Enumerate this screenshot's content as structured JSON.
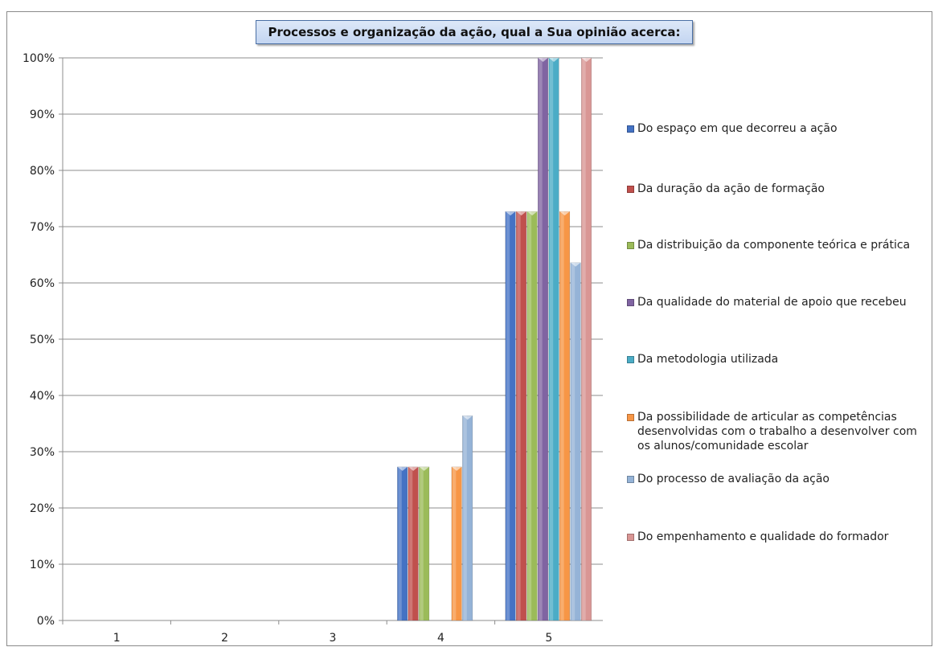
{
  "chart_data": {
    "type": "bar",
    "title": "Processos e organização da ação, qual a Sua opinião acerca:",
    "xlabel": "",
    "ylabel": "",
    "categories": [
      "1",
      "2",
      "3",
      "4",
      "5"
    ],
    "ylim": [
      0,
      1
    ],
    "y_ticks": [
      "0%",
      "10%",
      "20%",
      "30%",
      "40%",
      "50%",
      "60%",
      "70%",
      "80%",
      "90%",
      "100%"
    ],
    "grid": true,
    "legend_position": "right",
    "series": [
      {
        "name": "Do espaço em que decorreu a ação",
        "color": "#4472c4",
        "values": [
          0,
          0,
          0,
          0.273,
          0.727
        ]
      },
      {
        "name": "Da duração da ação de formação",
        "color": "#c0504d",
        "values": [
          0,
          0,
          0,
          0.273,
          0.727
        ]
      },
      {
        "name": "Da distribuição da componente teórica e prática",
        "color": "#9bbb59",
        "values": [
          0,
          0,
          0,
          0.273,
          0.727
        ]
      },
      {
        "name": "Da qualidade do material de apoio que recebeu",
        "color": "#8064a2",
        "values": [
          0,
          0,
          0,
          0,
          1.0
        ]
      },
      {
        "name": "Da metodologia utilizada",
        "color": "#4bacc6",
        "values": [
          0,
          0,
          0,
          0,
          1.0
        ]
      },
      {
        "name": "Da possibilidade de articular as competências desenvolvidas com o trabalho a desenvolver com os alunos/comunidade escolar",
        "color": "#f79646",
        "values": [
          0,
          0,
          0,
          0.273,
          0.727
        ]
      },
      {
        "name": "Do processo de avaliação da ação",
        "color": "#95b3d7",
        "values": [
          0,
          0,
          0,
          0.364,
          0.636
        ]
      },
      {
        "name": "Do empenhamento e qualidade do formador",
        "color": "#d99694",
        "values": [
          0,
          0,
          0,
          0,
          1.0
        ]
      }
    ]
  }
}
